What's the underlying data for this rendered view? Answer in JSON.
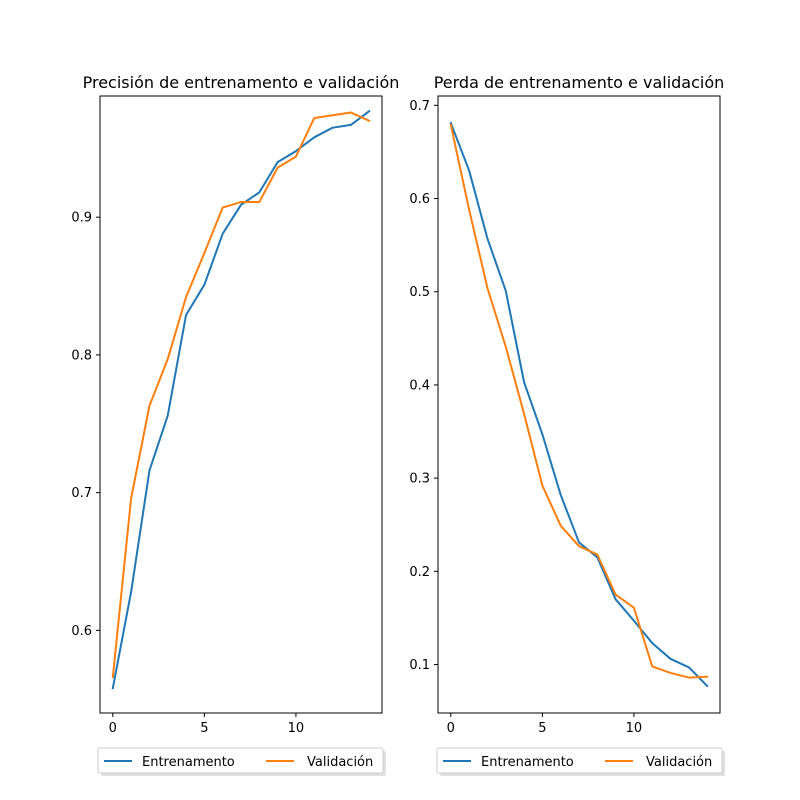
{
  "chart_data": [
    {
      "type": "line",
      "title": "Precisión de entrenamento e validación",
      "xlabel": "",
      "ylabel": "",
      "x": [
        0,
        1,
        2,
        3,
        4,
        5,
        6,
        7,
        8,
        9,
        10,
        11,
        12,
        13,
        14
      ],
      "xlim": [
        -0.7,
        14.7
      ],
      "ylim": [
        0.54,
        0.988
      ],
      "xticks": [
        0,
        5,
        10
      ],
      "yticks": [
        0.6,
        0.7,
        0.8,
        0.9
      ],
      "xtick_labels": [
        "0",
        "5",
        "10"
      ],
      "ytick_labels": [
        "0.6",
        "0.7",
        "0.8",
        "0.9"
      ],
      "grid": false,
      "legend_position": "below",
      "series": [
        {
          "name": "Entrenamento",
          "color": "#1f77b4",
          "values": [
            0.558,
            0.628,
            0.716,
            0.756,
            0.829,
            0.851,
            0.888,
            0.909,
            0.918,
            0.94,
            0.948,
            0.958,
            0.965,
            0.967,
            0.977
          ]
        },
        {
          "name": "Validación",
          "color": "#ff7f0e",
          "values": [
            0.566,
            0.696,
            0.763,
            0.797,
            0.842,
            0.874,
            0.907,
            0.911,
            0.911,
            0.936,
            0.944,
            0.972,
            0.974,
            0.976,
            0.97
          ]
        }
      ]
    },
    {
      "type": "line",
      "title": "Perda de entrenamento e validación",
      "xlabel": "",
      "ylabel": "",
      "x": [
        0,
        1,
        2,
        3,
        4,
        5,
        6,
        7,
        8,
        9,
        10,
        11,
        12,
        13,
        14
      ],
      "xlim": [
        -0.7,
        14.7
      ],
      "ylim": [
        0.048,
        0.71
      ],
      "xticks": [
        0,
        5,
        10
      ],
      "yticks": [
        0.1,
        0.2,
        0.3,
        0.4,
        0.5,
        0.6,
        0.7
      ],
      "xtick_labels": [
        "0",
        "5",
        "10"
      ],
      "ytick_labels": [
        "0.1",
        "0.2",
        "0.3",
        "0.4",
        "0.5",
        "0.6",
        "0.7"
      ],
      "grid": false,
      "legend_position": "below",
      "series": [
        {
          "name": "Entrenamento",
          "color": "#1f77b4",
          "values": [
            0.681,
            0.63,
            0.557,
            0.501,
            0.403,
            0.347,
            0.282,
            0.231,
            0.215,
            0.17,
            0.147,
            0.123,
            0.106,
            0.097,
            0.077
          ]
        },
        {
          "name": "Validación",
          "color": "#ff7f0e",
          "values": [
            0.679,
            0.588,
            0.504,
            0.441,
            0.369,
            0.292,
            0.249,
            0.227,
            0.218,
            0.175,
            0.161,
            0.098,
            0.091,
            0.086,
            0.087
          ]
        }
      ]
    }
  ]
}
